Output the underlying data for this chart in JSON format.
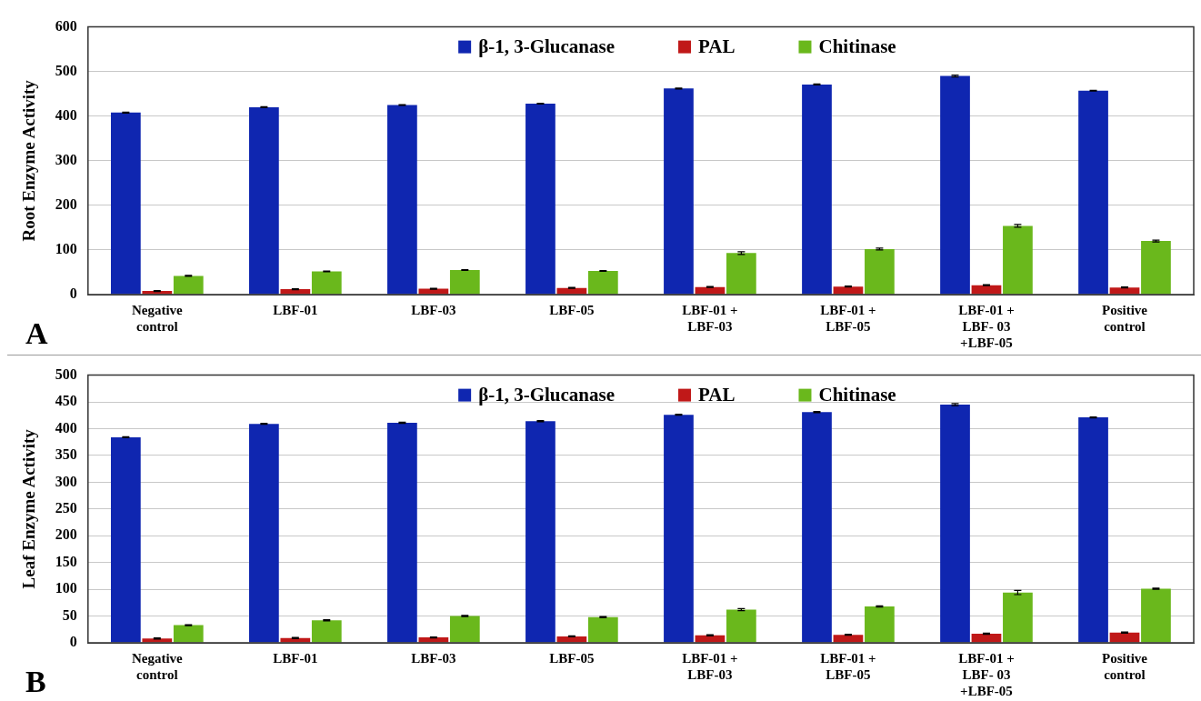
{
  "chart_data": [
    {
      "type": "bar",
      "ylabel": "Root Enzyme Activity",
      "annotations": [
        "A"
      ],
      "categories": [
        "Negative\ncontrol",
        "LBF-01",
        "LBF-03",
        "LBF-05",
        "LBF-01 +\nLBF-03",
        "LBF-01 +\nLBF-05",
        "LBF-01 +\nLBF- 03\n+LBF-05",
        "Positive\ncontrol"
      ],
      "series": [
        {
          "name": "β-1, 3-Glucanase",
          "color": "#0f26b0",
          "values": [
            408,
            420,
            425,
            428,
            462,
            471,
            490,
            457
          ],
          "errors": [
            1,
            1,
            1,
            1,
            1,
            1,
            2,
            1
          ]
        },
        {
          "name": "PAL",
          "color": "#c01818",
          "values": [
            8,
            12,
            13,
            15,
            17,
            18,
            21,
            16
          ],
          "errors": [
            1,
            1,
            1,
            1,
            1,
            1,
            1,
            1
          ]
        },
        {
          "name": "Chitinase",
          "color": "#6ab81c",
          "values": [
            42,
            52,
            55,
            53,
            93,
            102,
            154,
            120
          ],
          "errors": [
            1,
            1,
            1,
            1,
            3,
            2,
            3,
            2
          ]
        }
      ],
      "ylim": [
        0,
        600
      ],
      "yticks": [
        0,
        100,
        200,
        300,
        400,
        500,
        600
      ],
      "grid": "y",
      "legend": "top"
    },
    {
      "type": "bar",
      "ylabel": "Leaf Enzyme Activity",
      "annotations": [
        "B"
      ],
      "categories": [
        "Negative\ncontrol",
        "LBF-01",
        "LBF-03",
        "LBF-05",
        "LBF-01 +\nLBF-03",
        "LBF-01 +\nLBF-05",
        "LBF-01 +\nLBF- 03\n+LBF-05",
        "Positive\ncontrol"
      ],
      "series": [
        {
          "name": "β-1, 3-Glucanase",
          "color": "#0f26b0",
          "values": [
            384,
            409,
            411,
            414,
            426,
            431,
            445,
            421
          ],
          "errors": [
            1,
            1,
            1,
            1,
            1,
            1,
            2,
            1
          ]
        },
        {
          "name": "PAL",
          "color": "#c01818",
          "values": [
            8,
            9,
            10,
            12,
            14,
            15,
            17,
            19
          ],
          "errors": [
            1,
            1,
            1,
            1,
            1,
            1,
            1,
            1
          ]
        },
        {
          "name": "Chitinase",
          "color": "#6ab81c",
          "values": [
            33,
            42,
            50,
            48,
            62,
            68,
            94,
            101
          ],
          "errors": [
            1,
            1,
            1,
            1,
            2,
            1,
            4,
            1
          ]
        }
      ],
      "ylim": [
        0,
        500
      ],
      "yticks": [
        0,
        50,
        100,
        150,
        200,
        250,
        300,
        350,
        400,
        450,
        500
      ],
      "grid": "y",
      "legend": "top"
    }
  ]
}
